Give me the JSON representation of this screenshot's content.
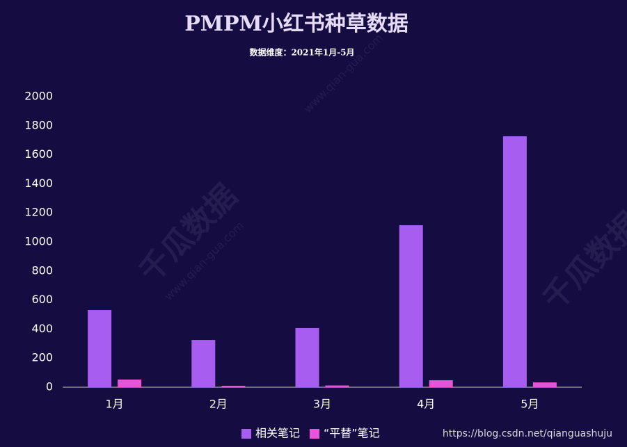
{
  "chart_data": {
    "type": "bar",
    "title": "PMPM小红书种草数据",
    "subtitle": "数据维度：2021年1月-5月",
    "categories": [
      "1月",
      "2月",
      "3月",
      "4月",
      "5月"
    ],
    "series": [
      {
        "name": "相关笔记",
        "color": "#a75ef0",
        "values": [
          531,
          325,
          407,
          1115,
          1727
        ]
      },
      {
        "name": "“平替”笔记",
        "color": "#e455d8",
        "values": [
          53,
          10,
          12,
          48,
          33
        ]
      }
    ],
    "ylim": [
      0,
      2000
    ],
    "yticks": [
      0,
      200,
      400,
      600,
      800,
      1000,
      1200,
      1400,
      1600,
      1800,
      2000
    ],
    "grid": false,
    "legend": "bottom",
    "watermarks": [
      "千瓜数据",
      "www.qian-gua.com"
    ],
    "source_url": "https://blog.csdn.net/qianguashuju"
  }
}
